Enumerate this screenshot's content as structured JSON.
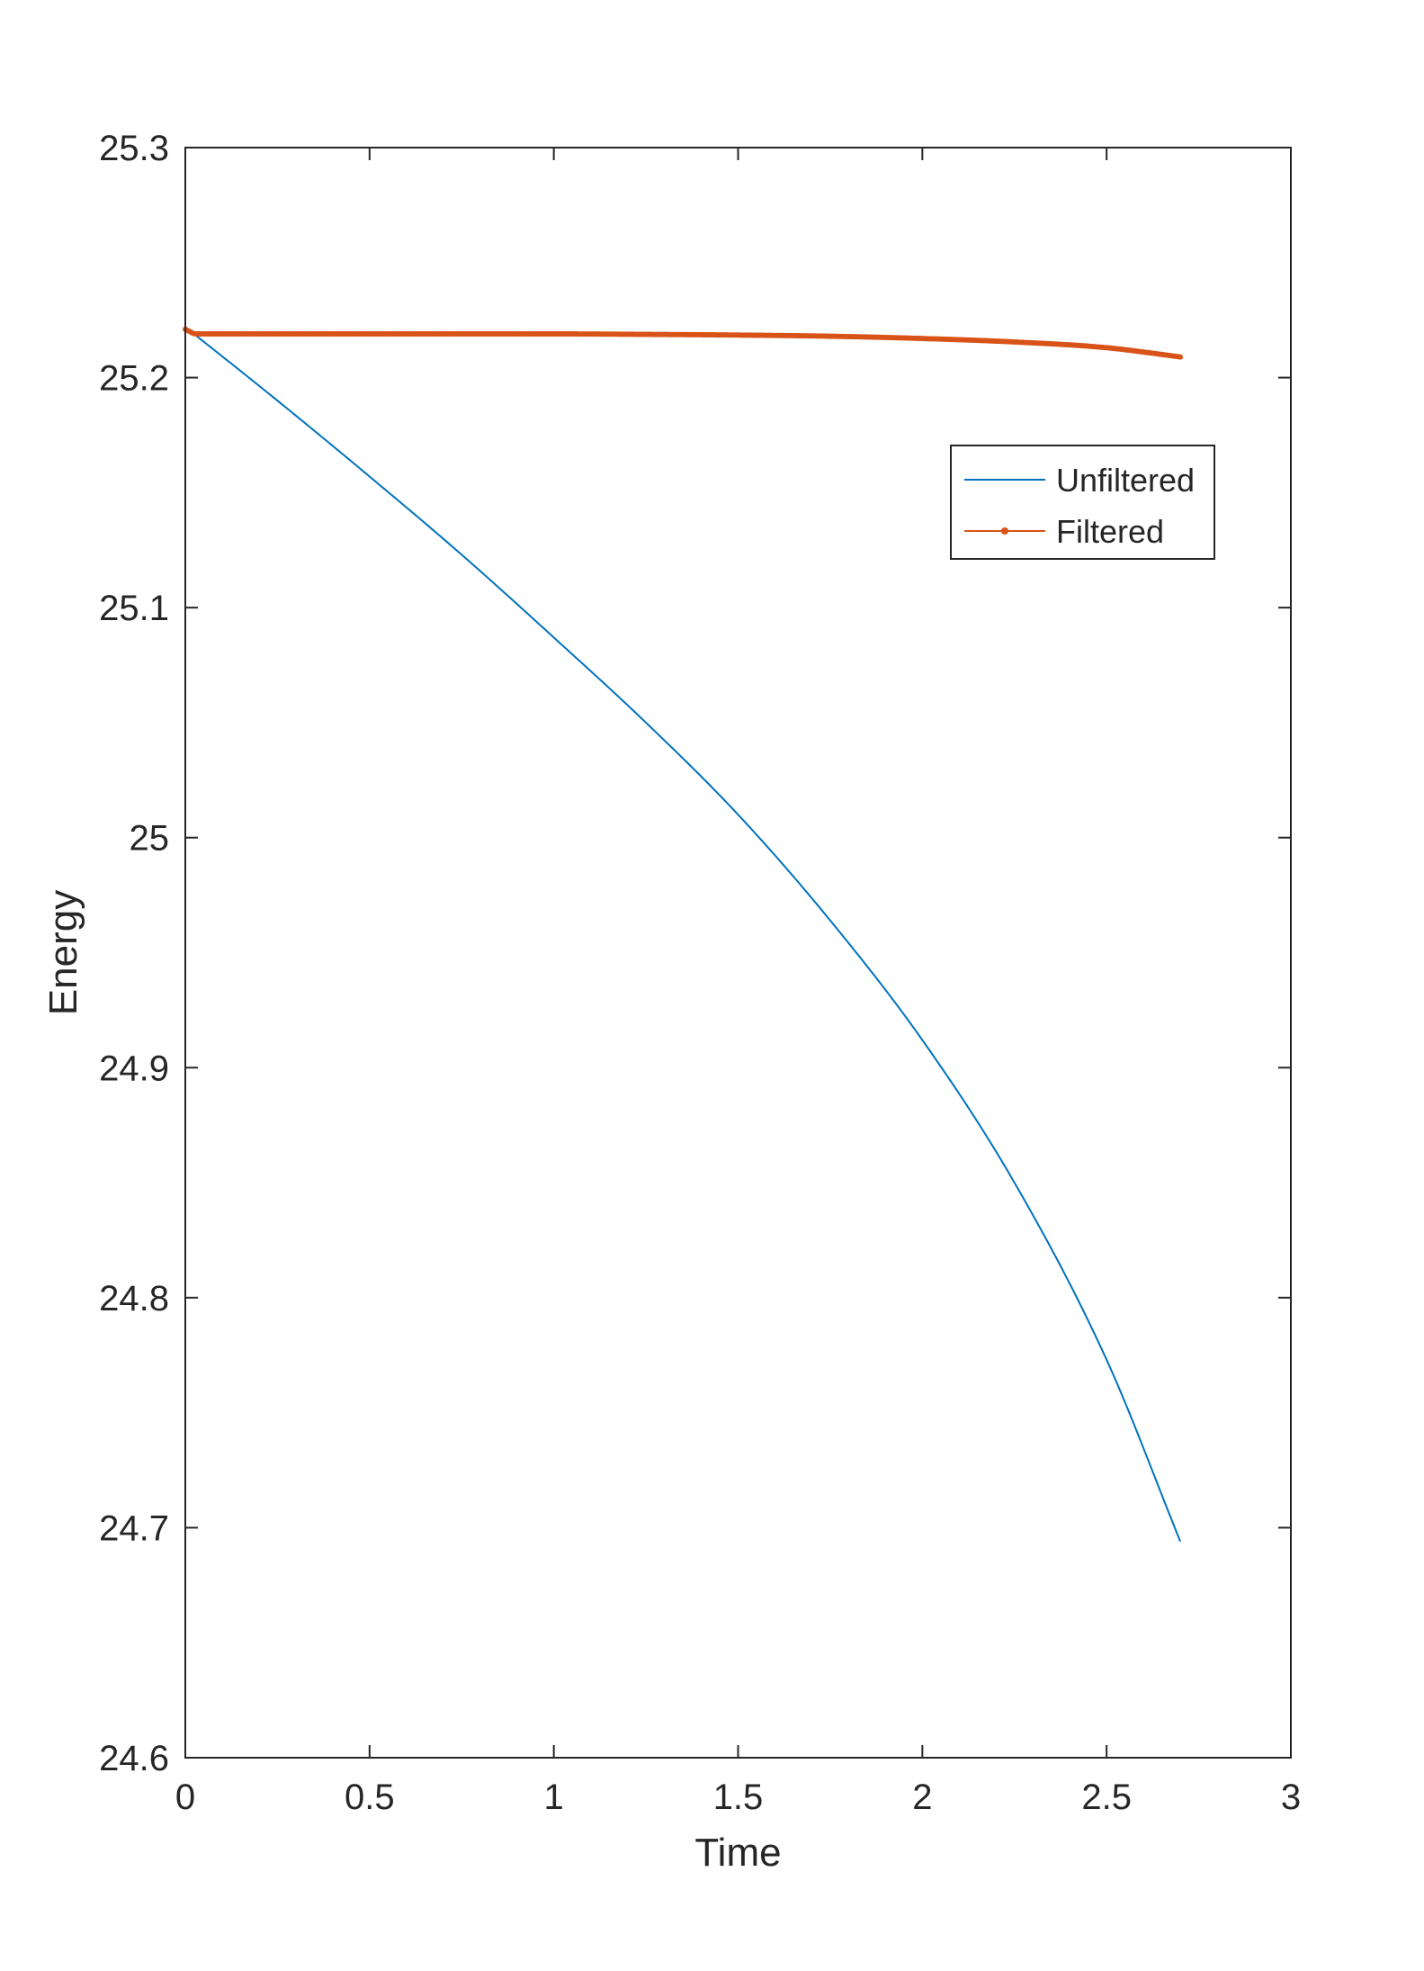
{
  "chart_data": {
    "type": "line",
    "xlabel": "Time",
    "ylabel": "Energy",
    "xlim": [
      0,
      3
    ],
    "ylim": [
      24.6,
      25.3
    ],
    "xticks": [
      "0",
      "0.5",
      "1",
      "1.5",
      "2",
      "2.5",
      "3"
    ],
    "yticks": [
      "24.6",
      "24.7",
      "24.8",
      "24.9",
      "25",
      "25.1",
      "25.2",
      "25.3"
    ],
    "grid": false,
    "legend_position": "top-right",
    "series": [
      {
        "name": "Unfiltered",
        "color": "#0072BD",
        "marker": "none",
        "x": [
          0,
          0.25,
          0.5,
          0.75,
          1.0,
          1.25,
          1.5,
          1.75,
          2.0,
          2.25,
          2.5,
          2.7
        ],
        "y": [
          25.222,
          25.19,
          25.157,
          25.123,
          25.087,
          25.05,
          25.01,
          24.964,
          24.912,
          24.85,
          24.773,
          24.694
        ]
      },
      {
        "name": "Filtered",
        "color": "#D95319",
        "marker": "dot",
        "x": [
          0,
          0.03,
          0.25,
          0.5,
          0.75,
          1.0,
          1.25,
          1.5,
          1.75,
          2.0,
          2.25,
          2.5,
          2.7
        ],
        "y": [
          25.221,
          25.219,
          25.219,
          25.219,
          25.219,
          25.219,
          25.2188,
          25.2185,
          25.218,
          25.217,
          25.2155,
          25.213,
          25.209
        ]
      }
    ]
  }
}
